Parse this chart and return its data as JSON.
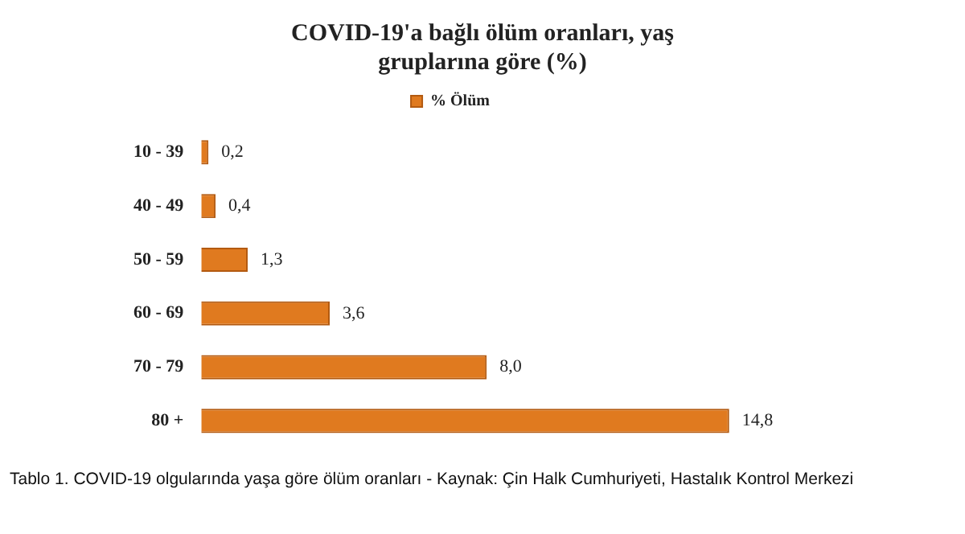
{
  "chart_data": {
    "type": "bar",
    "orientation": "horizontal",
    "title": "COVID-19'a bağlı ölüm oranları, yaş gruplarına göre (%)",
    "categories": [
      "10 - 39",
      "40 - 49",
      "50 - 59",
      "60 - 69",
      "70 - 79",
      "80 +"
    ],
    "series": [
      {
        "name": "% Ölüm",
        "color": "#e07a1f",
        "values": [
          0.2,
          0.4,
          1.3,
          3.6,
          8.0,
          14.8
        ],
        "value_labels": [
          "0,2",
          "0,4",
          "1,3",
          "3,6",
          "8,0",
          "14,8"
        ]
      }
    ],
    "legend": "top",
    "tick_labels": "y",
    "annotations": [
      "Tablo 1. COVID-19 olgularında yaşa göre ölüm oranları - Kaynak: Çin Halk Cumhuriyeti, Hastalık Kontrol Merkezi"
    ]
  }
}
